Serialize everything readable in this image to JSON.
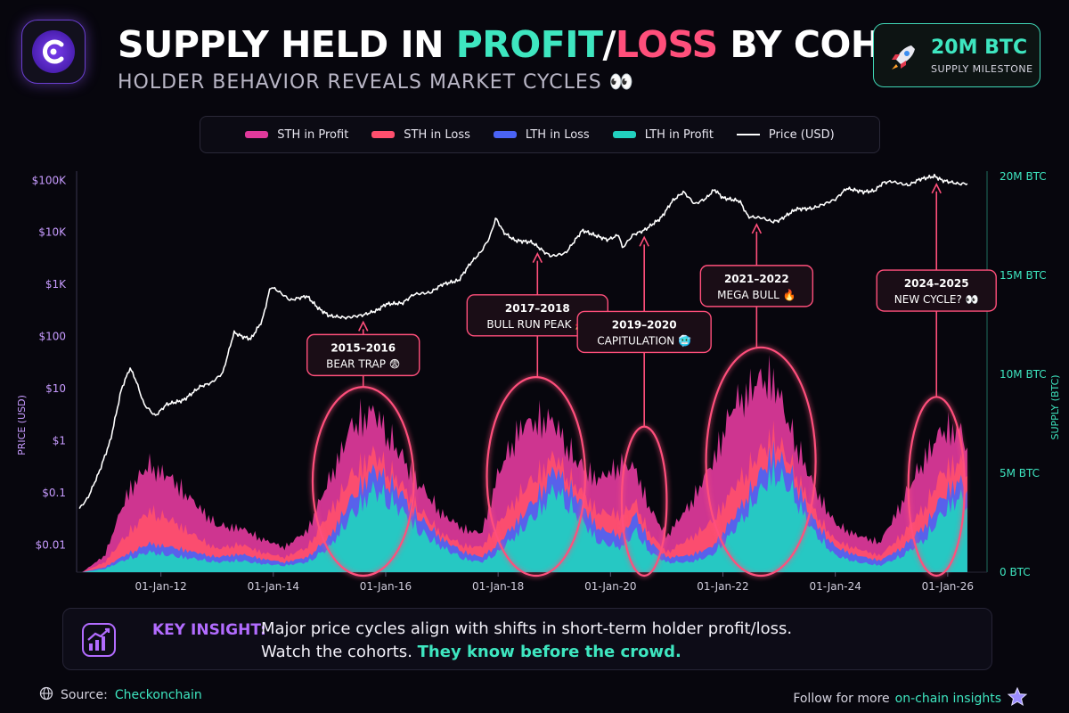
{
  "header": {
    "title_part1": "SUPPLY HELD IN ",
    "title_profit": "PROFIT",
    "title_slash": "/",
    "title_loss": "LOSS",
    "title_part2": " BY COHORT",
    "subtitle": "HOLDER BEHAVIOR REVEALS MARKET CYCLES 👀",
    "logo_icon": "checkonchain-logo-icon"
  },
  "milestone": {
    "value": "20M BTC",
    "label": "SUPPLY MILESTONE",
    "icon": "rocket-icon"
  },
  "colors": {
    "sth_profit": "#e0399b",
    "sth_loss": "#ff4f6d",
    "lth_loss": "#4a63f5",
    "lth_profit": "#22d1bf",
    "price": "#ffffff",
    "left_axis": "#c79bff",
    "right_axis": "#3ee6c0",
    "highlight": "#ff4f7b"
  },
  "chart_data": {
    "type": "area",
    "legend": [
      "STH in Profit",
      "STH in Loss",
      "LTH in Loss",
      "LTH in Profit",
      "Price (USD)"
    ],
    "legend_placement": "top",
    "x_range": [
      2010.5,
      2026.7
    ],
    "x_ticks": [
      {
        "x": 2012.0,
        "label": "01-Jan-12"
      },
      {
        "x": 2014.0,
        "label": "01-Jan-14"
      },
      {
        "x": 2016.0,
        "label": "01-Jan-16"
      },
      {
        "x": 2018.0,
        "label": "01-Jan-18"
      },
      {
        "x": 2020.0,
        "label": "01-Jan-20"
      },
      {
        "x": 2022.0,
        "label": "01-Jan-22"
      },
      {
        "x": 2024.0,
        "label": "01-Jan-24"
      },
      {
        "x": 2026.0,
        "label": "01-Jan-26"
      }
    ],
    "left_axis": {
      "label": "PRICE (USD)",
      "scale": "log",
      "range": [
        0.003,
        150000
      ],
      "ticks": [
        {
          "v": 0.01,
          "label": "$0.01"
        },
        {
          "v": 0.1,
          "label": "$0.1"
        },
        {
          "v": 1,
          "label": "$1"
        },
        {
          "v": 10,
          "label": "$10"
        },
        {
          "v": 100,
          "label": "$100"
        },
        {
          "v": 1000,
          "label": "$1K"
        },
        {
          "v": 10000,
          "label": "$10K"
        },
        {
          "v": 100000,
          "label": "$100K"
        }
      ]
    },
    "right_axis": {
      "label": "SUPPLY (BTC)",
      "range": [
        0,
        20
      ],
      "unit": "M BTC",
      "ticks": [
        {
          "v": 0,
          "label": "0 BTC"
        },
        {
          "v": 5,
          "label": "5M BTC"
        },
        {
          "v": 10,
          "label": "10M BTC"
        },
        {
          "v": 15,
          "label": "15M BTC"
        },
        {
          "v": 20,
          "label": "20M BTC"
        }
      ]
    },
    "price_series": {
      "name": "Price (USD)",
      "points": [
        [
          2010.55,
          0.05
        ],
        [
          2010.7,
          0.08
        ],
        [
          2010.9,
          0.25
        ],
        [
          2011.1,
          1
        ],
        [
          2011.3,
          10
        ],
        [
          2011.45,
          25
        ],
        [
          2011.55,
          15
        ],
        [
          2011.7,
          5
        ],
        [
          2011.9,
          3
        ],
        [
          2012.1,
          5
        ],
        [
          2012.4,
          6
        ],
        [
          2012.7,
          11
        ],
        [
          2012.9,
          13
        ],
        [
          2013.1,
          20
        ],
        [
          2013.3,
          120
        ],
        [
          2013.45,
          100
        ],
        [
          2013.6,
          90
        ],
        [
          2013.8,
          200
        ],
        [
          2013.95,
          900
        ],
        [
          2014.05,
          800
        ],
        [
          2014.3,
          500
        ],
        [
          2014.6,
          600
        ],
        [
          2014.8,
          350
        ],
        [
          2015.0,
          250
        ],
        [
          2015.3,
          230
        ],
        [
          2015.6,
          260
        ],
        [
          2015.85,
          320
        ],
        [
          2016.0,
          420
        ],
        [
          2016.3,
          440
        ],
        [
          2016.5,
          650
        ],
        [
          2016.8,
          700
        ],
        [
          2017.0,
          1000
        ],
        [
          2017.3,
          1200
        ],
        [
          2017.5,
          2500
        ],
        [
          2017.7,
          4300
        ],
        [
          2017.85,
          8000
        ],
        [
          2017.96,
          19000
        ],
        [
          2018.1,
          10000
        ],
        [
          2018.3,
          7000
        ],
        [
          2018.6,
          6500
        ],
        [
          2018.85,
          4000
        ],
        [
          2018.95,
          3500
        ],
        [
          2019.2,
          4000
        ],
        [
          2019.5,
          11000
        ],
        [
          2019.7,
          9000
        ],
        [
          2019.95,
          7200
        ],
        [
          2020.15,
          9000
        ],
        [
          2020.21,
          5000
        ],
        [
          2020.4,
          9000
        ],
        [
          2020.6,
          11000
        ],
        [
          2020.9,
          19000
        ],
        [
          2021.1,
          40000
        ],
        [
          2021.3,
          60000
        ],
        [
          2021.5,
          35000
        ],
        [
          2021.7,
          45000
        ],
        [
          2021.85,
          67000
        ],
        [
          2022.0,
          46000
        ],
        [
          2022.3,
          40000
        ],
        [
          2022.45,
          20000
        ],
        [
          2022.7,
          19000
        ],
        [
          2022.88,
          16000
        ],
        [
          2023.0,
          17000
        ],
        [
          2023.3,
          28000
        ],
        [
          2023.6,
          29000
        ],
        [
          2023.8,
          35000
        ],
        [
          2024.0,
          43000
        ],
        [
          2024.2,
          70000
        ],
        [
          2024.5,
          60000
        ],
        [
          2024.7,
          63000
        ],
        [
          2024.85,
          90000
        ],
        [
          2025.0,
          95000
        ],
        [
          2025.2,
          85000
        ],
        [
          2025.3,
          80000
        ],
        [
          2025.5,
          105000
        ],
        [
          2025.77,
          120000
        ],
        [
          2025.9,
          100000
        ],
        [
          2026.1,
          90000
        ],
        [
          2026.2,
          85000
        ],
        [
          2026.35,
          87000
        ]
      ]
    },
    "supply_series": [
      {
        "name": "LTH in Profit",
        "stack_order": 1,
        "points": [
          [
            2010.6,
            0
          ],
          [
            2011.0,
            0.2
          ],
          [
            2011.4,
            0.8
          ],
          [
            2011.8,
            1.2
          ],
          [
            2012.2,
            1.0
          ],
          [
            2012.6,
            0.8
          ],
          [
            2013.0,
            0.6
          ],
          [
            2013.4,
            0.7
          ],
          [
            2013.8,
            0.5
          ],
          [
            2014.2,
            0.4
          ],
          [
            2014.6,
            0.6
          ],
          [
            2015.0,
            1.5
          ],
          [
            2015.4,
            3.5
          ],
          [
            2015.8,
            5.0
          ],
          [
            2016.2,
            4.0
          ],
          [
            2016.6,
            2.5
          ],
          [
            2017.0,
            1.5
          ],
          [
            2017.4,
            0.8
          ],
          [
            2017.7,
            0.6
          ],
          [
            2018.0,
            1.2
          ],
          [
            2018.4,
            2.5
          ],
          [
            2018.8,
            4.0
          ],
          [
            2019.0,
            5.0
          ],
          [
            2019.4,
            3.5
          ],
          [
            2019.8,
            1.8
          ],
          [
            2020.2,
            1.5
          ],
          [
            2020.45,
            2.5
          ],
          [
            2020.7,
            1.2
          ],
          [
            2021.0,
            0.6
          ],
          [
            2021.4,
            0.6
          ],
          [
            2021.8,
            1.0
          ],
          [
            2022.2,
            2.5
          ],
          [
            2022.6,
            4.5
          ],
          [
            2022.9,
            6.0
          ],
          [
            2023.2,
            5.0
          ],
          [
            2023.6,
            2.5
          ],
          [
            2024.0,
            1.0
          ],
          [
            2024.4,
            0.6
          ],
          [
            2024.8,
            0.4
          ],
          [
            2025.2,
            1.0
          ],
          [
            2025.6,
            2.0
          ],
          [
            2025.9,
            3.5
          ],
          [
            2026.2,
            4.5
          ],
          [
            2026.35,
            4.0
          ]
        ]
      },
      {
        "name": "LTH in Loss",
        "stack_order": 2,
        "points": [
          [
            2010.6,
            0
          ],
          [
            2011.0,
            0.1
          ],
          [
            2011.4,
            0.3
          ],
          [
            2011.8,
            0.5
          ],
          [
            2012.2,
            0.5
          ],
          [
            2012.6,
            0.4
          ],
          [
            2013.0,
            0.3
          ],
          [
            2013.4,
            0.4
          ],
          [
            2013.8,
            0.3
          ],
          [
            2014.2,
            0.2
          ],
          [
            2014.6,
            0.3
          ],
          [
            2015.0,
            0.6
          ],
          [
            2015.4,
            1.0
          ],
          [
            2015.8,
            1.2
          ],
          [
            2016.2,
            1.0
          ],
          [
            2016.6,
            0.8
          ],
          [
            2017.0,
            0.5
          ],
          [
            2017.4,
            0.4
          ],
          [
            2017.7,
            0.3
          ],
          [
            2018.0,
            0.5
          ],
          [
            2018.4,
            0.8
          ],
          [
            2018.8,
            1.0
          ],
          [
            2019.0,
            1.2
          ],
          [
            2019.4,
            1.0
          ],
          [
            2019.8,
            0.8
          ],
          [
            2020.2,
            0.7
          ],
          [
            2020.45,
            1.0
          ],
          [
            2020.7,
            0.6
          ],
          [
            2021.0,
            0.3
          ],
          [
            2021.4,
            0.4
          ],
          [
            2021.8,
            0.5
          ],
          [
            2022.2,
            0.8
          ],
          [
            2022.6,
            1.0
          ],
          [
            2022.9,
            1.2
          ],
          [
            2023.2,
            1.0
          ],
          [
            2023.6,
            0.7
          ],
          [
            2024.0,
            0.5
          ],
          [
            2024.4,
            0.4
          ],
          [
            2024.8,
            0.3
          ],
          [
            2025.2,
            0.5
          ],
          [
            2025.6,
            0.8
          ],
          [
            2025.9,
            1.0
          ],
          [
            2026.2,
            1.0
          ],
          [
            2026.35,
            0.9
          ]
        ]
      },
      {
        "name": "STH in Loss",
        "stack_order": 3,
        "points": [
          [
            2010.6,
            0
          ],
          [
            2011.0,
            0.3
          ],
          [
            2011.4,
            1.2
          ],
          [
            2011.8,
            2.0
          ],
          [
            2012.2,
            1.6
          ],
          [
            2012.6,
            1.0
          ],
          [
            2013.0,
            0.5
          ],
          [
            2013.4,
            0.6
          ],
          [
            2013.8,
            0.4
          ],
          [
            2014.2,
            0.3
          ],
          [
            2014.6,
            0.6
          ],
          [
            2015.0,
            1.5
          ],
          [
            2015.4,
            1.4
          ],
          [
            2015.8,
            1.0
          ],
          [
            2016.2,
            0.6
          ],
          [
            2016.6,
            0.5
          ],
          [
            2017.0,
            0.3
          ],
          [
            2017.4,
            0.4
          ],
          [
            2017.7,
            0.6
          ],
          [
            2018.0,
            1.2
          ],
          [
            2018.4,
            1.5
          ],
          [
            2018.8,
            1.2
          ],
          [
            2019.0,
            0.8
          ],
          [
            2019.4,
            0.6
          ],
          [
            2019.8,
            1.0
          ],
          [
            2020.2,
            1.3
          ],
          [
            2020.45,
            0.7
          ],
          [
            2020.7,
            0.5
          ],
          [
            2021.0,
            0.3
          ],
          [
            2021.4,
            1.0
          ],
          [
            2021.8,
            1.5
          ],
          [
            2022.2,
            1.8
          ],
          [
            2022.6,
            1.4
          ],
          [
            2022.9,
            1.0
          ],
          [
            2023.2,
            0.6
          ],
          [
            2023.6,
            0.6
          ],
          [
            2024.0,
            0.4
          ],
          [
            2024.4,
            0.4
          ],
          [
            2024.8,
            0.3
          ],
          [
            2025.2,
            0.8
          ],
          [
            2025.6,
            1.2
          ],
          [
            2025.9,
            1.5
          ],
          [
            2026.2,
            1.2
          ],
          [
            2026.35,
            1.0
          ]
        ]
      },
      {
        "name": "STH in Profit",
        "stack_order": 4,
        "points": [
          [
            2010.6,
            0
          ],
          [
            2011.0,
            0.4
          ],
          [
            2011.4,
            2.5
          ],
          [
            2011.8,
            2.8
          ],
          [
            2012.2,
            2.5
          ],
          [
            2012.6,
            2.0
          ],
          [
            2013.0,
            1.4
          ],
          [
            2013.4,
            1.0
          ],
          [
            2013.8,
            0.8
          ],
          [
            2014.2,
            0.6
          ],
          [
            2014.6,
            1.0
          ],
          [
            2015.0,
            2.0
          ],
          [
            2015.4,
            3.0
          ],
          [
            2015.8,
            2.5
          ],
          [
            2016.2,
            1.8
          ],
          [
            2016.6,
            1.5
          ],
          [
            2017.0,
            1.2
          ],
          [
            2017.4,
            1.0
          ],
          [
            2017.7,
            0.8
          ],
          [
            2018.0,
            3.0
          ],
          [
            2018.4,
            4.0
          ],
          [
            2018.8,
            3.0
          ],
          [
            2019.0,
            2.0
          ],
          [
            2019.4,
            1.5
          ],
          [
            2019.8,
            2.0
          ],
          [
            2020.2,
            3.0
          ],
          [
            2020.45,
            2.0
          ],
          [
            2020.7,
            1.5
          ],
          [
            2021.0,
            1.0
          ],
          [
            2021.4,
            2.0
          ],
          [
            2021.8,
            3.5
          ],
          [
            2022.2,
            5.0
          ],
          [
            2022.6,
            4.5
          ],
          [
            2022.9,
            3.5
          ],
          [
            2023.2,
            2.0
          ],
          [
            2023.6,
            1.5
          ],
          [
            2024.0,
            1.0
          ],
          [
            2024.4,
            0.8
          ],
          [
            2024.8,
            0.8
          ],
          [
            2025.2,
            2.0
          ],
          [
            2025.6,
            3.0
          ],
          [
            2025.9,
            2.5
          ],
          [
            2026.2,
            2.0
          ],
          [
            2026.35,
            1.5
          ]
        ]
      }
    ],
    "annotations": [
      {
        "period": "2015–2016",
        "label": "BEAR TRAP 😨",
        "x": 2015.6,
        "ellipse_x": [
          2014.7,
          2016.5
        ],
        "supply_top": 9.0
      },
      {
        "period": "2017–2018",
        "label": "BULL RUN PEAK 🚀",
        "x": 2018.7,
        "ellipse_x": [
          2017.8,
          2019.55
        ],
        "supply_top": 9.5
      },
      {
        "period": "2019–2020",
        "label": "CAPITULATION 🥶",
        "x": 2020.6,
        "ellipse_x": [
          2020.2,
          2021.0
        ],
        "supply_top": 7.0
      },
      {
        "period": "2021–2022",
        "label": "MEGA BULL 🔥",
        "x": 2022.6,
        "ellipse_x": [
          2021.7,
          2023.65
        ],
        "supply_top": 11.0
      },
      {
        "period": "2024–2025",
        "label": "NEW CYCLE? 👀",
        "x": 2025.8,
        "ellipse_x": [
          2025.3,
          2026.3
        ],
        "supply_top": 8.5
      }
    ]
  },
  "insight": {
    "title": "KEY INSIGHT:",
    "line1": "Major price cycles align with shifts in short-term holder profit/loss.",
    "line2_prefix": "Watch the cohorts. ",
    "line2_highlight": "They know before the crowd.",
    "icon": "growth-chart-icon"
  },
  "footer": {
    "source_prefix": "Source: ",
    "source_name": "Checkonchain",
    "source_icon": "globe-icon",
    "follow_prefix": "Follow for more ",
    "follow_link": "on-chain insights",
    "follow_icon": "star-icon"
  }
}
